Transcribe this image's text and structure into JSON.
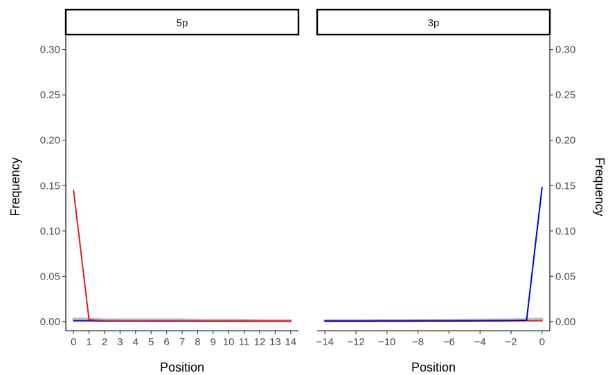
{
  "chart_data": {
    "type": "line",
    "ylabel": "Frequency",
    "xlabel": "Position",
    "ylim": [
      -0.01,
      0.315
    ],
    "yticks": [
      0.0,
      0.05,
      0.1,
      0.15,
      0.2,
      0.25,
      0.3
    ],
    "ytick_labels": [
      "0.00",
      "0.05",
      "0.10",
      "0.15",
      "0.20",
      "0.25",
      "0.30"
    ],
    "colors": {
      "red": "#e41a1c",
      "blue": "#0000dd",
      "grey": "#b3b3b3"
    },
    "panels": [
      {
        "strip": "5p",
        "xlim": [
          -0.5,
          14.5
        ],
        "xticks": [
          0,
          1,
          2,
          3,
          4,
          5,
          6,
          7,
          8,
          9,
          10,
          11,
          12,
          13,
          14
        ],
        "xtick_labels": [
          "0",
          "1",
          "2",
          "3",
          "4",
          "5",
          "6",
          "7",
          "8",
          "9",
          "10",
          "11",
          "12",
          "13",
          "14"
        ],
        "y_axis_side": "left",
        "series": [
          {
            "color": "grey",
            "x": [
              0,
              1,
              2,
              3,
              4,
              5,
              6,
              7,
              8,
              9,
              10,
              11,
              12,
              13,
              14
            ],
            "y": [
              0.003,
              0.003,
              0.002,
              0.002,
              0.002,
              0.002,
              0.002,
              0.002,
              0.0015,
              0.0015,
              0.0015,
              0.0015,
              0.0012,
              0.0012,
              0.0012
            ]
          },
          {
            "color": "blue",
            "x": [
              0,
              1,
              2,
              3,
              4,
              5,
              6,
              7,
              8,
              9,
              10,
              11,
              12,
              13,
              14
            ],
            "y": [
              0.001,
              0.001,
              0.0008,
              0.0008,
              0.0008,
              0.0007,
              0.0007,
              0.0007,
              0.0006,
              0.0006,
              0.0006,
              0.0005,
              0.0005,
              0.0005,
              0.0005
            ]
          },
          {
            "color": "red",
            "x": [
              0,
              1,
              2,
              3,
              4,
              5,
              6,
              7,
              8,
              9,
              10,
              11,
              12,
              13,
              14
            ],
            "y": [
              0.145,
              0.002,
              0.0012,
              0.001,
              0.001,
              0.001,
              0.001,
              0.0009,
              0.0009,
              0.0008,
              0.0008,
              0.0008,
              0.0007,
              0.0007,
              0.0007
            ]
          }
        ]
      },
      {
        "strip": "3p",
        "xlim": [
          -14.5,
          0.5
        ],
        "xticks": [
          -14,
          -12,
          -10,
          -8,
          -6,
          -4,
          -2,
          0
        ],
        "xtick_labels": [
          "−14",
          "−12",
          "−10",
          "−8",
          "−6",
          "−4",
          "−2",
          "0"
        ],
        "y_axis_side": "right",
        "series": [
          {
            "color": "grey",
            "x": [
              -14,
              -13,
              -12,
              -11,
              -10,
              -9,
              -8,
              -7,
              -6,
              -5,
              -4,
              -3,
              -2,
              -1,
              0
            ],
            "y": [
              0.0012,
              0.0012,
              0.0012,
              0.0013,
              0.0013,
              0.0013,
              0.0014,
              0.0014,
              0.0015,
              0.0016,
              0.0017,
              0.0018,
              0.002,
              0.0025,
              0.003
            ]
          },
          {
            "color": "red",
            "x": [
              -14,
              -13,
              -12,
              -11,
              -10,
              -9,
              -8,
              -7,
              -6,
              -5,
              -4,
              -3,
              -2,
              -1,
              0
            ],
            "y": [
              0.0005,
              0.0005,
              0.0005,
              0.0005,
              0.0006,
              0.0006,
              0.0006,
              0.0007,
              0.0007,
              0.0007,
              0.0008,
              0.0008,
              0.0009,
              0.001,
              0.001
            ]
          },
          {
            "color": "blue",
            "x": [
              -14,
              -13,
              -12,
              -11,
              -10,
              -9,
              -8,
              -7,
              -6,
              -5,
              -4,
              -3,
              -2,
              -1,
              0
            ],
            "y": [
              0.0008,
              0.0008,
              0.0008,
              0.0008,
              0.0009,
              0.0009,
              0.0009,
              0.001,
              0.001,
              0.0011,
              0.0011,
              0.0012,
              0.0013,
              0.0015,
              0.148
            ]
          }
        ]
      }
    ]
  }
}
